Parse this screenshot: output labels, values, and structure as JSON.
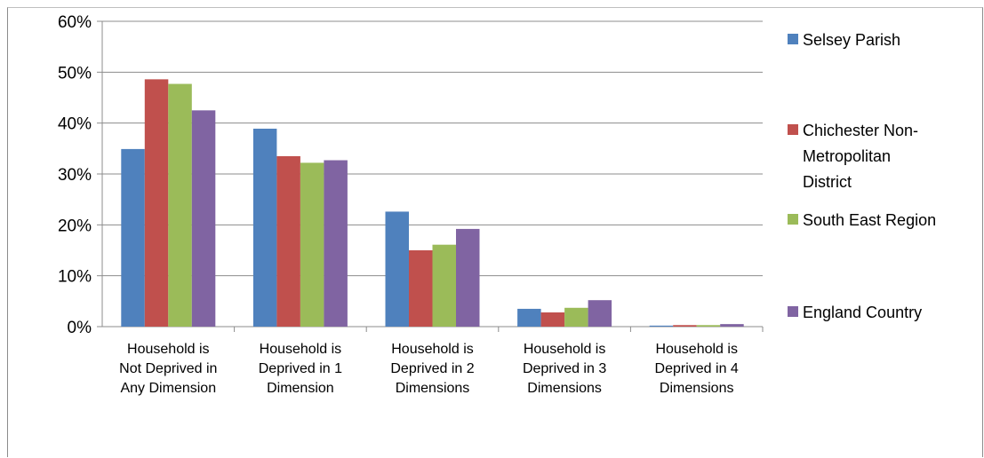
{
  "chart_data": {
    "type": "bar",
    "categories": [
      [
        "Household is",
        "Not Deprived in",
        "Any Dimension"
      ],
      [
        "Household is",
        "Deprived in 1",
        "Dimension"
      ],
      [
        "Household is",
        "Deprived in 2",
        "Dimensions"
      ],
      [
        "Household is",
        "Deprived in 3",
        "Dimensions"
      ],
      [
        "Household is",
        "Deprived in 4",
        "Dimensions"
      ]
    ],
    "series": [
      {
        "name": "Selsey Parish",
        "color": "#4f81bd",
        "values": [
          34.9,
          38.9,
          22.6,
          3.5,
          0.2
        ]
      },
      {
        "name": "Chichester Non-Metropolitan District",
        "legend_lines": [
          "Chichester Non-",
          "Metropolitan",
          "District"
        ],
        "color": "#c0504d",
        "values": [
          48.6,
          33.5,
          15.0,
          2.8,
          0.3
        ]
      },
      {
        "name": "South East Region",
        "color": "#9bbb59",
        "values": [
          47.7,
          32.2,
          16.1,
          3.7,
          0.3
        ]
      },
      {
        "name": "England Country",
        "color": "#8064a2",
        "values": [
          42.5,
          32.7,
          19.2,
          5.2,
          0.5
        ]
      }
    ],
    "yticks": [
      "0%",
      "10%",
      "20%",
      "30%",
      "40%",
      "50%",
      "60%"
    ],
    "ylim": [
      0,
      60
    ],
    "grid": true,
    "legend_position": "right"
  }
}
